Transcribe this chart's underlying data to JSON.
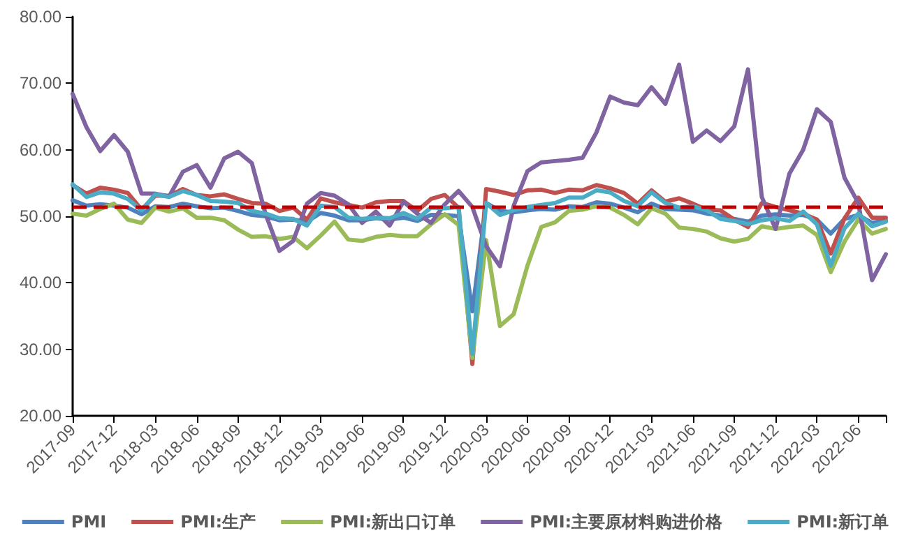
{
  "chart_data": {
    "type": "line",
    "categories": [
      "2017-09",
      null,
      null,
      "2017-12",
      null,
      null,
      "2018-03",
      null,
      null,
      "2018-06",
      null,
      null,
      "2018-09",
      null,
      null,
      "2018-12",
      null,
      null,
      "2019-03",
      null,
      null,
      "2019-06",
      null,
      null,
      "2019-09",
      null,
      null,
      "2019-12",
      null,
      null,
      "2020-03",
      null,
      null,
      "2020-06",
      null,
      null,
      "2020-09",
      null,
      null,
      "2020-12",
      null,
      null,
      "2021-03",
      null,
      null,
      "2021-06",
      null,
      null,
      "2021-09",
      null,
      null,
      "2021-12",
      null,
      null,
      "2022-03",
      null,
      null,
      "2022-06",
      null,
      null
    ],
    "series": [
      {
        "name": "PMI",
        "color": "#4f81bd",
        "values": [
          52.4,
          51.6,
          51.8,
          51.6,
          51.3,
          50.3,
          51.5,
          51.4,
          51.9,
          51.5,
          51.2,
          51.3,
          50.8,
          50.2,
          50.0,
          49.4,
          49.5,
          49.2,
          50.5,
          50.1,
          49.4,
          49.4,
          49.7,
          49.5,
          49.8,
          49.3,
          50.2,
          50.2,
          50.0,
          35.7,
          52.0,
          50.8,
          50.6,
          50.9,
          51.1,
          51.0,
          51.5,
          51.4,
          52.1,
          51.9,
          51.3,
          50.6,
          51.9,
          51.1,
          51.0,
          50.9,
          50.4,
          50.1,
          49.6,
          49.2,
          50.1,
          50.3,
          50.1,
          50.2,
          49.5,
          47.4,
          49.6,
          50.2,
          49.0,
          49.4
        ]
      },
      {
        "name": "PMI:生产",
        "color": "#c0504d",
        "values": [
          54.7,
          53.4,
          54.3,
          54.0,
          53.5,
          51.0,
          53.1,
          53.1,
          54.1,
          53.2,
          53.0,
          53.3,
          52.6,
          52.0,
          51.9,
          50.8,
          51.3,
          49.5,
          52.7,
          52.1,
          51.7,
          51.3,
          52.1,
          52.3,
          52.3,
          50.8,
          52.6,
          53.2,
          51.3,
          27.8,
          54.1,
          53.7,
          53.2,
          53.9,
          54.0,
          53.5,
          54.0,
          53.9,
          54.7,
          54.2,
          53.5,
          51.9,
          53.9,
          52.2,
          52.7,
          51.9,
          51.0,
          50.9,
          49.5,
          48.4,
          52.0,
          51.4,
          50.9,
          50.4,
          49.5,
          44.4,
          49.7,
          52.8,
          49.8,
          49.8
        ]
      },
      {
        "name": "PMI:新出口订单",
        "color": "#9bbb59",
        "values": [
          50.4,
          50.1,
          51.1,
          51.9,
          49.5,
          49.0,
          51.3,
          50.7,
          51.2,
          49.8,
          49.8,
          49.4,
          48.0,
          46.9,
          47.0,
          46.6,
          46.9,
          45.2,
          47.1,
          49.2,
          46.5,
          46.3,
          46.9,
          47.2,
          47.0,
          47.0,
          48.8,
          50.3,
          48.7,
          28.7,
          46.4,
          33.5,
          35.3,
          42.6,
          48.4,
          49.1,
          50.8,
          51.0,
          51.5,
          51.3,
          50.2,
          48.8,
          51.2,
          50.4,
          48.3,
          48.1,
          47.7,
          46.7,
          46.2,
          46.6,
          48.5,
          48.1,
          48.4,
          48.6,
          47.2,
          41.6,
          46.2,
          49.5,
          47.4,
          48.1
        ]
      },
      {
        "name": "PMI:主要原材料购进价格",
        "color": "#8064a2",
        "values": [
          68.4,
          63.4,
          59.8,
          62.2,
          59.7,
          53.4,
          53.4,
          53.0,
          56.7,
          57.7,
          54.3,
          58.7,
          59.7,
          58.0,
          50.3,
          44.8,
          46.3,
          51.9,
          53.5,
          53.1,
          51.8,
          49.0,
          50.7,
          48.6,
          52.2,
          50.4,
          49.0,
          51.8,
          53.8,
          51.4,
          45.5,
          42.5,
          51.6,
          56.8,
          58.1,
          58.3,
          58.5,
          58.8,
          62.6,
          68.0,
          67.1,
          66.7,
          69.4,
          66.9,
          72.8,
          61.2,
          62.9,
          61.3,
          63.5,
          72.1,
          52.9,
          48.1,
          56.4,
          60.0,
          66.1,
          64.2,
          55.8,
          52.0,
          40.4,
          44.3
        ]
      },
      {
        "name": "PMI:新订单",
        "color": "#4bacc6",
        "values": [
          54.8,
          52.9,
          53.6,
          53.4,
          52.6,
          50.9,
          53.3,
          52.9,
          53.8,
          53.2,
          52.3,
          52.2,
          52.0,
          50.8,
          50.4,
          49.7,
          49.6,
          48.6,
          51.6,
          51.4,
          49.8,
          49.6,
          49.8,
          49.7,
          50.5,
          49.6,
          51.3,
          51.2,
          51.4,
          29.3,
          52.0,
          50.2,
          50.9,
          51.4,
          51.7,
          52.0,
          52.8,
          52.8,
          53.9,
          53.6,
          52.3,
          51.5,
          53.6,
          52.0,
          51.3,
          51.5,
          50.9,
          49.6,
          49.3,
          48.8,
          49.4,
          49.7,
          49.3,
          50.7,
          48.8,
          42.6,
          48.2,
          50.4,
          48.5,
          49.2
        ]
      }
    ],
    "ylim": [
      20,
      80
    ],
    "yticks": [
      {
        "value": 20,
        "label": "20.00"
      },
      {
        "value": 30,
        "label": "30.00"
      },
      {
        "value": 40,
        "label": "40.00"
      },
      {
        "value": 50,
        "label": "50.00"
      },
      {
        "value": 60,
        "label": "60.00"
      },
      {
        "value": 70,
        "label": "70.00"
      },
      {
        "value": 80,
        "label": "80.00"
      }
    ],
    "ref_lines": [
      {
        "axis": "y",
        "value": 51.5,
        "color": "#c00000",
        "line_style": "dashed"
      }
    ],
    "grid": false,
    "legend": "bottom",
    "marker": "none",
    "line_style": "solid"
  }
}
